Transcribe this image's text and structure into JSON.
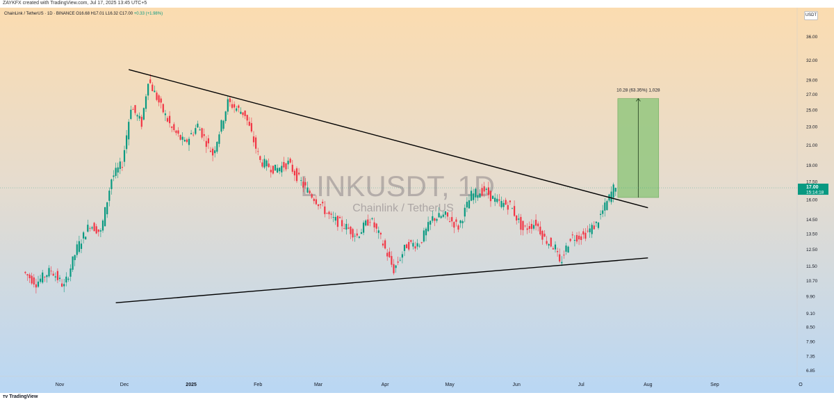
{
  "attribution": "ZAYKFX created with TradingView.com, Jul 17, 2025 13:45 UTC+5",
  "footer_logo": "TradingView",
  "currency": "USDT",
  "legend": {
    "symbol": "ChainLink / TetherUS · 1D · BINANCE",
    "open": "O16.68",
    "high": "H17.01",
    "low": "L16.32",
    "close": "C17.00",
    "change": "+0.33 (+1.98%)"
  },
  "watermark": {
    "ticker": "LINKUSDT, 1D",
    "name": "Chainlink / TetherUS"
  },
  "colors": {
    "bg_top": "#fbdcb0",
    "bg_bottom": "#b9d7f4",
    "up": "#089981",
    "down": "#f23645",
    "target_fill": "#8dc57a",
    "price_label": "#089981"
  },
  "chart_data": {
    "type": "candlestick",
    "price_scale": "log",
    "y_ticks": [
      "36.00",
      "32.00",
      "29.00",
      "27.00",
      "25.00",
      "23.00",
      "21.00",
      "19.00",
      "17.50",
      "16.00",
      "14.50",
      "13.50",
      "12.50",
      "11.50",
      "10.70",
      "9.90",
      "9.10",
      "8.50",
      "7.90",
      "7.35",
      "6.85"
    ],
    "x_ticks": [
      "Nov",
      "Dec",
      "2025",
      "Feb",
      "Mar",
      "Apr",
      "May",
      "Jun",
      "Jul",
      "Aug",
      "Sep",
      "O"
    ],
    "last_price": "17.00",
    "countdown": "15:14:18",
    "measure_label": "10.28 (63.35%) 1,028",
    "measure": {
      "from": 16.2,
      "to": 26.5
    },
    "trendlines": [
      {
        "name": "descending-resistance",
        "from": {
          "date": "2024-12-03",
          "price": 30.6
        },
        "to": {
          "date": "2025-08-01",
          "price": 15.4
        }
      },
      {
        "name": "ascending-support",
        "from": {
          "date": "2024-11-27",
          "price": 9.6
        },
        "to": {
          "date": "2025-08-01",
          "price": 12.0
        }
      }
    ],
    "anchors": [
      {
        "date": "2024-10-16",
        "price": 11.2
      },
      {
        "date": "2024-10-22",
        "price": 10.6
      },
      {
        "date": "2024-10-29",
        "price": 11.3
      },
      {
        "date": "2024-11-04",
        "price": 10.4
      },
      {
        "date": "2024-11-10",
        "price": 12.6
      },
      {
        "date": "2024-11-16",
        "price": 14.2
      },
      {
        "date": "2024-11-21",
        "price": 13.6
      },
      {
        "date": "2024-11-26",
        "price": 17.8
      },
      {
        "date": "2024-12-01",
        "price": 19.2
      },
      {
        "date": "2024-12-05",
        "price": 25.5
      },
      {
        "date": "2024-12-10",
        "price": 23.4
      },
      {
        "date": "2024-12-13",
        "price": 29.2
      },
      {
        "date": "2024-12-19",
        "price": 25.4
      },
      {
        "date": "2024-12-24",
        "price": 22.8
      },
      {
        "date": "2024-12-30",
        "price": 21.2
      },
      {
        "date": "2025-01-05",
        "price": 23.2
      },
      {
        "date": "2025-01-12",
        "price": 20.1
      },
      {
        "date": "2025-01-19",
        "price": 26.0
      },
      {
        "date": "2025-01-27",
        "price": 24.5
      },
      {
        "date": "2025-02-03",
        "price": 19.4
      },
      {
        "date": "2025-02-10",
        "price": 18.6
      },
      {
        "date": "2025-02-16",
        "price": 19.2
      },
      {
        "date": "2025-02-23",
        "price": 17.2
      },
      {
        "date": "2025-03-02",
        "price": 15.8
      },
      {
        "date": "2025-03-08",
        "price": 14.6
      },
      {
        "date": "2025-03-13",
        "price": 14.2
      },
      {
        "date": "2025-03-20",
        "price": 13.4
      },
      {
        "date": "2025-03-26",
        "price": 14.6
      },
      {
        "date": "2025-03-31",
        "price": 13.2
      },
      {
        "date": "2025-04-06",
        "price": 11.3
      },
      {
        "date": "2025-04-12",
        "price": 12.8
      },
      {
        "date": "2025-04-18",
        "price": 12.9
      },
      {
        "date": "2025-04-24",
        "price": 14.6
      },
      {
        "date": "2025-04-30",
        "price": 14.8
      },
      {
        "date": "2025-05-06",
        "price": 14.0
      },
      {
        "date": "2025-05-12",
        "price": 16.4
      },
      {
        "date": "2025-05-18",
        "price": 16.8
      },
      {
        "date": "2025-05-24",
        "price": 15.8
      },
      {
        "date": "2025-05-30",
        "price": 15.6
      },
      {
        "date": "2025-06-05",
        "price": 13.8
      },
      {
        "date": "2025-06-11",
        "price": 14.3
      },
      {
        "date": "2025-06-15",
        "price": 13.2
      },
      {
        "date": "2025-06-20",
        "price": 12.6
      },
      {
        "date": "2025-06-22",
        "price": 11.6
      },
      {
        "date": "2025-06-27",
        "price": 13.3
      },
      {
        "date": "2025-07-03",
        "price": 13.4
      },
      {
        "date": "2025-07-09",
        "price": 14.2
      },
      {
        "date": "2025-07-14",
        "price": 15.8
      },
      {
        "date": "2025-07-17",
        "price": 17.0
      }
    ]
  }
}
